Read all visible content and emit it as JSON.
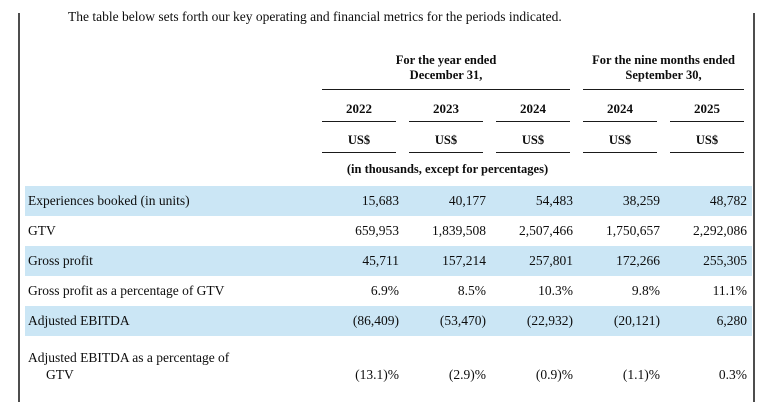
{
  "intro": "The table below sets forth our key operating and financial metrics for the periods indicated.",
  "table": {
    "highlight_color": "#cbe6f5",
    "rule_color": "#1a1a1a",
    "col_groups": [
      {
        "line1": "For the year ended",
        "line2": "December 31,"
      },
      {
        "line1": "For the nine months ended",
        "line2": "September 30,"
      }
    ],
    "years": [
      "2022",
      "2023",
      "2024",
      "2024",
      "2025"
    ],
    "currency": [
      "US$",
      "US$",
      "US$",
      "US$",
      "US$"
    ],
    "units_note": "(in thousands, except for percentages)",
    "rows": [
      {
        "label": "Experiences booked (in units)",
        "highlight": true,
        "values": [
          "15,683",
          "40,177",
          "54,483",
          "38,259",
          "48,782"
        ]
      },
      {
        "label": "GTV",
        "highlight": false,
        "values": [
          "659,953",
          "1,839,508",
          "2,507,466",
          "1,750,657",
          "2,292,086"
        ]
      },
      {
        "label": "Gross profit",
        "highlight": true,
        "values": [
          "45,711",
          "157,214",
          "257,801",
          "172,266",
          "255,305"
        ]
      },
      {
        "label": "Gross profit as a percentage of GTV",
        "highlight": false,
        "values": [
          "6.9%",
          "8.5%",
          "10.3%",
          "9.8%",
          "11.1%"
        ]
      },
      {
        "label": "Adjusted EBITDA",
        "highlight": true,
        "values": [
          "(86,409)",
          "(53,470)",
          "(22,932)",
          "(20,121)",
          "6,280"
        ]
      },
      {
        "label": "Adjusted EBITDA as a percentage of",
        "label_line2": "GTV",
        "highlight": false,
        "values": [
          "(13.1)%",
          "(2.9)%",
          "(0.9)%",
          "(1.1)%",
          "0.3%"
        ]
      }
    ]
  }
}
